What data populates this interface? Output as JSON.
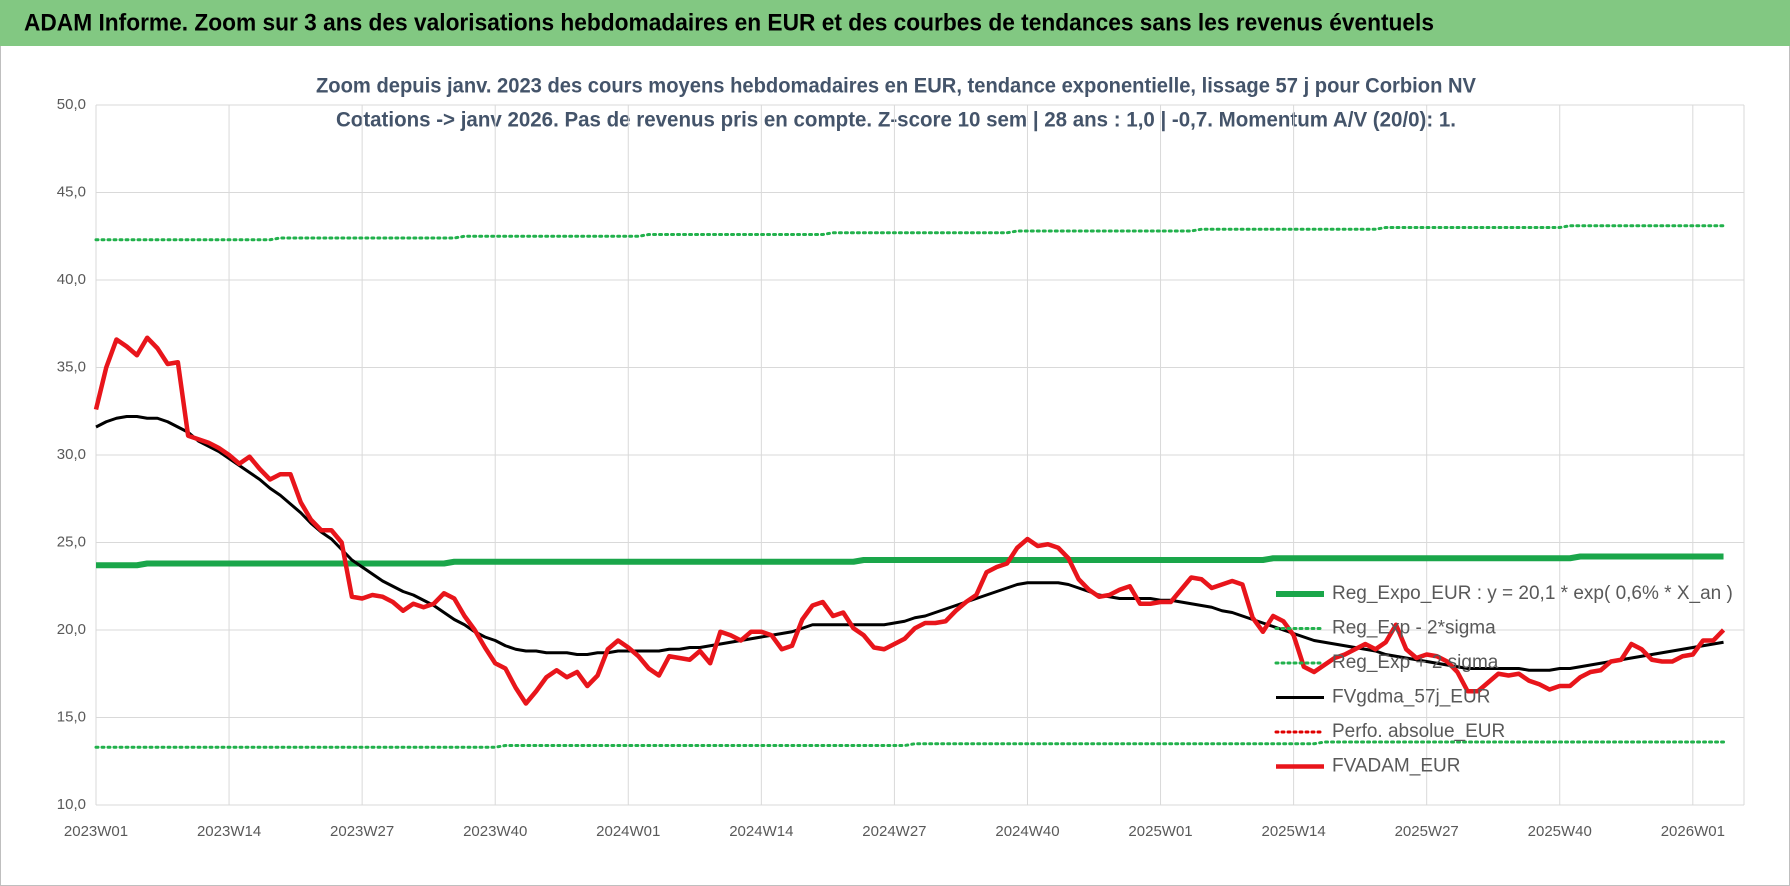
{
  "chart_data": {
    "type": "line",
    "header": "ADAM Informe. Zoom sur 3 ans des valorisations hebdomadaires en EUR et des courbes de tendances sans les revenus éventuels",
    "title": "Zoom depuis janv. 2023 des cours moyens hebdomadaires en EUR, tendance exponentielle, lissage 57 j pour Corbion NV",
    "subtitle": "Cotations -> janv 2026. Pas de revenus pris en compte. Z-score 10 sem | 28 ans : 1,0 | -0,7. Momentum A/V (20/0): 1.",
    "categories": [
      "2023W01",
      null,
      null,
      null,
      null,
      null,
      null,
      null,
      null,
      null,
      null,
      null,
      null,
      "2023W14",
      null,
      null,
      null,
      null,
      null,
      null,
      null,
      null,
      null,
      null,
      null,
      null,
      "2023W27",
      null,
      null,
      null,
      null,
      null,
      null,
      null,
      null,
      null,
      null,
      null,
      null,
      "2023W40",
      null,
      null,
      null,
      null,
      null,
      null,
      null,
      null,
      null,
      null,
      null,
      null,
      "2024W01",
      null,
      null,
      null,
      null,
      null,
      null,
      null,
      null,
      null,
      null,
      null,
      null,
      "2024W14",
      null,
      null,
      null,
      null,
      null,
      null,
      null,
      null,
      null,
      null,
      null,
      null,
      "2024W27",
      null,
      null,
      null,
      null,
      null,
      null,
      null,
      null,
      null,
      null,
      null,
      null,
      "2024W40",
      null,
      null,
      null,
      null,
      null,
      null,
      null,
      null,
      null,
      null,
      null,
      null,
      "2025W01",
      null,
      null,
      null,
      null,
      null,
      null,
      null,
      null,
      null,
      null,
      null,
      null,
      "2025W14",
      null,
      null,
      null,
      null,
      null,
      null,
      null,
      null,
      null,
      null,
      null,
      null,
      "2025W27",
      null,
      null,
      null,
      null,
      null,
      null,
      null,
      null,
      null,
      null,
      null,
      null,
      "2025W40",
      null,
      null,
      null,
      null,
      null,
      null,
      null,
      null,
      null,
      null,
      null,
      null,
      "2026W01",
      null,
      null,
      null
    ],
    "ylim": [
      10,
      50
    ],
    "yticks": [
      {
        "value": 10,
        "label": "10,0"
      },
      {
        "value": 15,
        "label": "15,0"
      },
      {
        "value": 20,
        "label": "20,0"
      },
      {
        "value": 25,
        "label": "25,0"
      },
      {
        "value": 30,
        "label": "30,0"
      },
      {
        "value": 35,
        "label": "35,0"
      },
      {
        "value": 40,
        "label": "40,0"
      },
      {
        "value": 45,
        "label": "45,0"
      },
      {
        "value": 50,
        "label": "50,0"
      }
    ],
    "grid": true,
    "legend": "right",
    "series": [
      {
        "name": "Reg_Expo_EUR : y = 20,1 * exp( 0,6% *  X_an )",
        "color": "#1aa64a",
        "style": "solid",
        "values": [
          23.7,
          23.7,
          23.7,
          23.7,
          23.7,
          23.8,
          23.8,
          23.8,
          23.8,
          23.8,
          23.8,
          23.8,
          23.8,
          23.8,
          23.8,
          23.8,
          23.8,
          23.8,
          23.8,
          23.8,
          23.8,
          23.8,
          23.8,
          23.8,
          23.8,
          23.8,
          23.8,
          23.8,
          23.8,
          23.8,
          23.8,
          23.8,
          23.8,
          23.8,
          23.8,
          23.9,
          23.9,
          23.9,
          23.9,
          23.9,
          23.9,
          23.9,
          23.9,
          23.9,
          23.9,
          23.9,
          23.9,
          23.9,
          23.9,
          23.9,
          23.9,
          23.9,
          23.9,
          23.9,
          23.9,
          23.9,
          23.9,
          23.9,
          23.9,
          23.9,
          23.9,
          23.9,
          23.9,
          23.9,
          23.9,
          23.9,
          23.9,
          23.9,
          23.9,
          23.9,
          23.9,
          23.9,
          23.9,
          23.9,
          23.9,
          24.0,
          24.0,
          24.0,
          24.0,
          24.0,
          24.0,
          24.0,
          24.0,
          24.0,
          24.0,
          24.0,
          24.0,
          24.0,
          24.0,
          24.0,
          24.0,
          24.0,
          24.0,
          24.0,
          24.0,
          24.0,
          24.0,
          24.0,
          24.0,
          24.0,
          24.0,
          24.0,
          24.0,
          24.0,
          24.0,
          24.0,
          24.0,
          24.0,
          24.0,
          24.0,
          24.0,
          24.0,
          24.0,
          24.0,
          24.0,
          24.1,
          24.1,
          24.1,
          24.1,
          24.1,
          24.1,
          24.1,
          24.1,
          24.1,
          24.1,
          24.1,
          24.1,
          24.1,
          24.1,
          24.1,
          24.1,
          24.1,
          24.1,
          24.1,
          24.1,
          24.1,
          24.1,
          24.1,
          24.1,
          24.1,
          24.1,
          24.1,
          24.1,
          24.1,
          24.1,
          24.2,
          24.2,
          24.2,
          24.2,
          24.2,
          24.2,
          24.2,
          24.2,
          24.2,
          24.2,
          24.2,
          24.2,
          24.2,
          24.2,
          24.2
        ]
      },
      {
        "name": "Reg_Exp - 2*sigma",
        "color": "#22b14c",
        "style": "dotted",
        "values": [
          13.3,
          13.3,
          13.3,
          13.3,
          13.3,
          13.3,
          13.3,
          13.3,
          13.3,
          13.3,
          13.3,
          13.3,
          13.3,
          13.3,
          13.3,
          13.3,
          13.3,
          13.3,
          13.3,
          13.3,
          13.3,
          13.3,
          13.3,
          13.3,
          13.3,
          13.3,
          13.3,
          13.3,
          13.3,
          13.3,
          13.3,
          13.3,
          13.3,
          13.3,
          13.3,
          13.3,
          13.3,
          13.3,
          13.3,
          13.3,
          13.4,
          13.4,
          13.4,
          13.4,
          13.4,
          13.4,
          13.4,
          13.4,
          13.4,
          13.4,
          13.4,
          13.4,
          13.4,
          13.4,
          13.4,
          13.4,
          13.4,
          13.4,
          13.4,
          13.4,
          13.4,
          13.4,
          13.4,
          13.4,
          13.4,
          13.4,
          13.4,
          13.4,
          13.4,
          13.4,
          13.4,
          13.4,
          13.4,
          13.4,
          13.4,
          13.4,
          13.4,
          13.4,
          13.4,
          13.4,
          13.5,
          13.5,
          13.5,
          13.5,
          13.5,
          13.5,
          13.5,
          13.5,
          13.5,
          13.5,
          13.5,
          13.5,
          13.5,
          13.5,
          13.5,
          13.5,
          13.5,
          13.5,
          13.5,
          13.5,
          13.5,
          13.5,
          13.5,
          13.5,
          13.5,
          13.5,
          13.5,
          13.5,
          13.5,
          13.5,
          13.5,
          13.5,
          13.5,
          13.5,
          13.5,
          13.5,
          13.5,
          13.5,
          13.5,
          13.5,
          13.6,
          13.6,
          13.6,
          13.6,
          13.6,
          13.6,
          13.6,
          13.6,
          13.6,
          13.6,
          13.6,
          13.6,
          13.6,
          13.6,
          13.6,
          13.6,
          13.6,
          13.6,
          13.6,
          13.6,
          13.6,
          13.6,
          13.6,
          13.6,
          13.6,
          13.6,
          13.6,
          13.6,
          13.6,
          13.6,
          13.6,
          13.6,
          13.6,
          13.6,
          13.6,
          13.6,
          13.6,
          13.6,
          13.6,
          13.6
        ]
      },
      {
        "name": "Reg_Exp + 2 sigma",
        "color": "#22b14c",
        "style": "dotted",
        "values": [
          42.3,
          42.3,
          42.3,
          42.3,
          42.3,
          42.3,
          42.3,
          42.3,
          42.3,
          42.3,
          42.3,
          42.3,
          42.3,
          42.3,
          42.3,
          42.3,
          42.3,
          42.3,
          42.4,
          42.4,
          42.4,
          42.4,
          42.4,
          42.4,
          42.4,
          42.4,
          42.4,
          42.4,
          42.4,
          42.4,
          42.4,
          42.4,
          42.4,
          42.4,
          42.4,
          42.4,
          42.5,
          42.5,
          42.5,
          42.5,
          42.5,
          42.5,
          42.5,
          42.5,
          42.5,
          42.5,
          42.5,
          42.5,
          42.5,
          42.5,
          42.5,
          42.5,
          42.5,
          42.5,
          42.6,
          42.6,
          42.6,
          42.6,
          42.6,
          42.6,
          42.6,
          42.6,
          42.6,
          42.6,
          42.6,
          42.6,
          42.6,
          42.6,
          42.6,
          42.6,
          42.6,
          42.6,
          42.7,
          42.7,
          42.7,
          42.7,
          42.7,
          42.7,
          42.7,
          42.7,
          42.7,
          42.7,
          42.7,
          42.7,
          42.7,
          42.7,
          42.7,
          42.7,
          42.7,
          42.7,
          42.8,
          42.8,
          42.8,
          42.8,
          42.8,
          42.8,
          42.8,
          42.8,
          42.8,
          42.8,
          42.8,
          42.8,
          42.8,
          42.8,
          42.8,
          42.8,
          42.8,
          42.8,
          42.9,
          42.9,
          42.9,
          42.9,
          42.9,
          42.9,
          42.9,
          42.9,
          42.9,
          42.9,
          42.9,
          42.9,
          42.9,
          42.9,
          42.9,
          42.9,
          42.9,
          42.9,
          43.0,
          43.0,
          43.0,
          43.0,
          43.0,
          43.0,
          43.0,
          43.0,
          43.0,
          43.0,
          43.0,
          43.0,
          43.0,
          43.0,
          43.0,
          43.0,
          43.0,
          43.0,
          43.1,
          43.1,
          43.1,
          43.1,
          43.1,
          43.1,
          43.1,
          43.1,
          43.1,
          43.1,
          43.1,
          43.1,
          43.1,
          43.1,
          43.1,
          43.1
        ]
      },
      {
        "name": "FVgdma_57j_EUR",
        "color": "#000000",
        "style": "solid",
        "values": [
          31.6,
          31.9,
          32.1,
          32.2,
          32.2,
          32.1,
          32.1,
          31.9,
          31.6,
          31.3,
          30.8,
          30.5,
          30.2,
          29.8,
          29.4,
          29.0,
          28.6,
          28.1,
          27.7,
          27.2,
          26.7,
          26.1,
          25.6,
          25.2,
          24.6,
          24.0,
          23.6,
          23.2,
          22.8,
          22.5,
          22.2,
          22.0,
          21.7,
          21.4,
          21.0,
          20.6,
          20.3,
          19.9,
          19.6,
          19.4,
          19.1,
          18.9,
          18.8,
          18.8,
          18.7,
          18.7,
          18.7,
          18.6,
          18.6,
          18.7,
          18.7,
          18.8,
          18.8,
          18.8,
          18.8,
          18.8,
          18.9,
          18.9,
          19.0,
          19.0,
          19.1,
          19.2,
          19.3,
          19.4,
          19.5,
          19.6,
          19.7,
          19.8,
          19.9,
          20.1,
          20.3,
          20.3,
          20.3,
          20.3,
          20.3,
          20.3,
          20.3,
          20.3,
          20.4,
          20.5,
          20.7,
          20.8,
          21.0,
          21.2,
          21.4,
          21.6,
          21.8,
          22.0,
          22.2,
          22.4,
          22.6,
          22.7,
          22.7,
          22.7,
          22.7,
          22.6,
          22.4,
          22.2,
          22.0,
          21.9,
          21.8,
          21.8,
          21.8,
          21.8,
          21.7,
          21.7,
          21.6,
          21.5,
          21.4,
          21.3,
          21.1,
          21.0,
          20.8,
          20.6,
          20.4,
          20.2,
          20.0,
          19.8,
          19.6,
          19.4,
          19.3,
          19.2,
          19.1,
          19.0,
          18.9,
          18.8,
          18.6,
          18.5,
          18.4,
          18.3,
          18.2,
          18.1,
          18.0,
          17.9,
          17.8,
          17.8,
          17.8,
          17.8,
          17.8,
          17.8,
          17.7,
          17.7,
          17.7,
          17.8,
          17.8,
          17.9,
          18.0,
          18.1,
          18.2,
          18.3,
          18.4,
          18.5,
          18.6,
          18.7,
          18.8,
          18.9,
          19.0,
          19.1,
          19.2,
          19.3
        ]
      },
      {
        "name": "Perfo. absolue_EUR",
        "color": "#e00000",
        "style": "dotted"
      },
      {
        "name": "FVADAM_EUR",
        "color": "#e8151b",
        "style": "thick",
        "values": [
          32.6,
          35.0,
          36.6,
          36.2,
          35.7,
          36.7,
          36.1,
          35.2,
          35.3,
          31.1,
          30.9,
          30.7,
          30.4,
          30.0,
          29.5,
          29.9,
          29.2,
          28.6,
          28.9,
          28.9,
          27.3,
          26.3,
          25.7,
          25.7,
          25.0,
          21.9,
          21.8,
          22.0,
          21.9,
          21.6,
          21.1,
          21.5,
          21.3,
          21.5,
          22.1,
          21.8,
          20.8,
          20.0,
          19.0,
          18.1,
          17.8,
          16.7,
          15.8,
          16.5,
          17.3,
          17.7,
          17.3,
          17.6,
          16.8,
          17.4,
          18.9,
          19.4,
          19.0,
          18.5,
          17.8,
          17.4,
          18.5,
          18.4,
          18.3,
          18.8,
          18.1,
          19.9,
          19.7,
          19.4,
          19.9,
          19.9,
          19.7,
          18.9,
          19.1,
          20.6,
          21.4,
          21.6,
          20.8,
          21.0,
          20.1,
          19.7,
          19.0,
          18.9,
          19.2,
          19.5,
          20.1,
          20.4,
          20.4,
          20.5,
          21.1,
          21.6,
          22.0,
          23.3,
          23.6,
          23.8,
          24.7,
          25.2,
          24.8,
          24.9,
          24.7,
          24.1,
          22.9,
          22.3,
          21.9,
          22.0,
          22.3,
          22.5,
          21.5,
          21.5,
          21.6,
          21.6,
          22.3,
          23.0,
          22.9,
          22.4,
          22.6,
          22.8,
          22.6,
          20.7,
          19.9,
          20.8,
          20.5,
          19.7,
          17.9,
          17.6,
          18.0,
          18.4,
          18.6,
          18.9,
          19.2,
          18.9,
          19.3,
          20.3,
          18.9,
          18.4,
          18.6,
          18.5,
          18.2,
          17.6,
          16.5,
          16.5,
          17.0,
          17.5,
          17.4,
          17.5,
          17.1,
          16.9,
          16.6,
          16.8,
          16.8,
          17.3,
          17.6,
          17.7,
          18.2,
          18.3,
          19.2,
          18.9,
          18.3,
          18.2,
          18.2,
          18.5,
          18.6,
          19.4,
          19.4,
          20.0
        ]
      }
    ]
  }
}
